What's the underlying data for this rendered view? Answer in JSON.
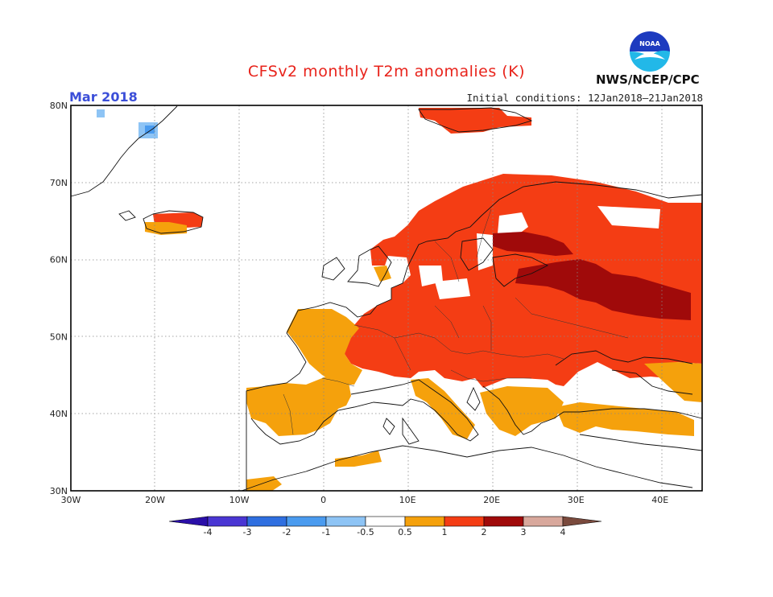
{
  "header": {
    "title": "CFSv2 monthly T2m anomalies (K)",
    "month": "Mar 2018",
    "initial_conditions": "Initial conditions: 12Jan2018–21Jan2018",
    "agency": "NWS/NCEP/CPC",
    "logo_text": "NOAA"
  },
  "map": {
    "lon_range": [
      -30,
      45
    ],
    "lat_range": [
      30,
      80
    ],
    "lon_ticks": [
      {
        "value": -30,
        "label": "30W"
      },
      {
        "value": -20,
        "label": "20W"
      },
      {
        "value": -10,
        "label": "10W"
      },
      {
        "value": 0,
        "label": "0"
      },
      {
        "value": 10,
        "label": "10E"
      },
      {
        "value": 20,
        "label": "20E"
      },
      {
        "value": 30,
        "label": "30E"
      },
      {
        "value": 40,
        "label": "40E"
      }
    ],
    "lat_ticks": [
      {
        "value": 30,
        "label": "30N"
      },
      {
        "value": 40,
        "label": "40N"
      },
      {
        "value": 50,
        "label": "50N"
      },
      {
        "value": 60,
        "label": "60N"
      },
      {
        "value": 70,
        "label": "70N"
      },
      {
        "value": 80,
        "label": "80N"
      }
    ],
    "grid": "dotted"
  },
  "colorbar": {
    "bounds": [
      "-4",
      "-3",
      "-2",
      "-1",
      "-0.5",
      "0.5",
      "1",
      "2",
      "3",
      "4"
    ],
    "colors": [
      "#2a0fa8",
      "#4a36d3",
      "#2f6fe0",
      "#4a9bef",
      "#8ec4f5",
      "#ffffff",
      "#f5a10c",
      "#f43d14",
      "#a00a0a",
      "#d8a89c",
      "#7a4a3d"
    ]
  },
  "colors": {
    "c05_1": "#f5a10c",
    "c1_2": "#f43d14",
    "c2_3": "#a00a0a",
    "cm05": "#8ec4f5",
    "cm1": "#4a9bef"
  }
}
